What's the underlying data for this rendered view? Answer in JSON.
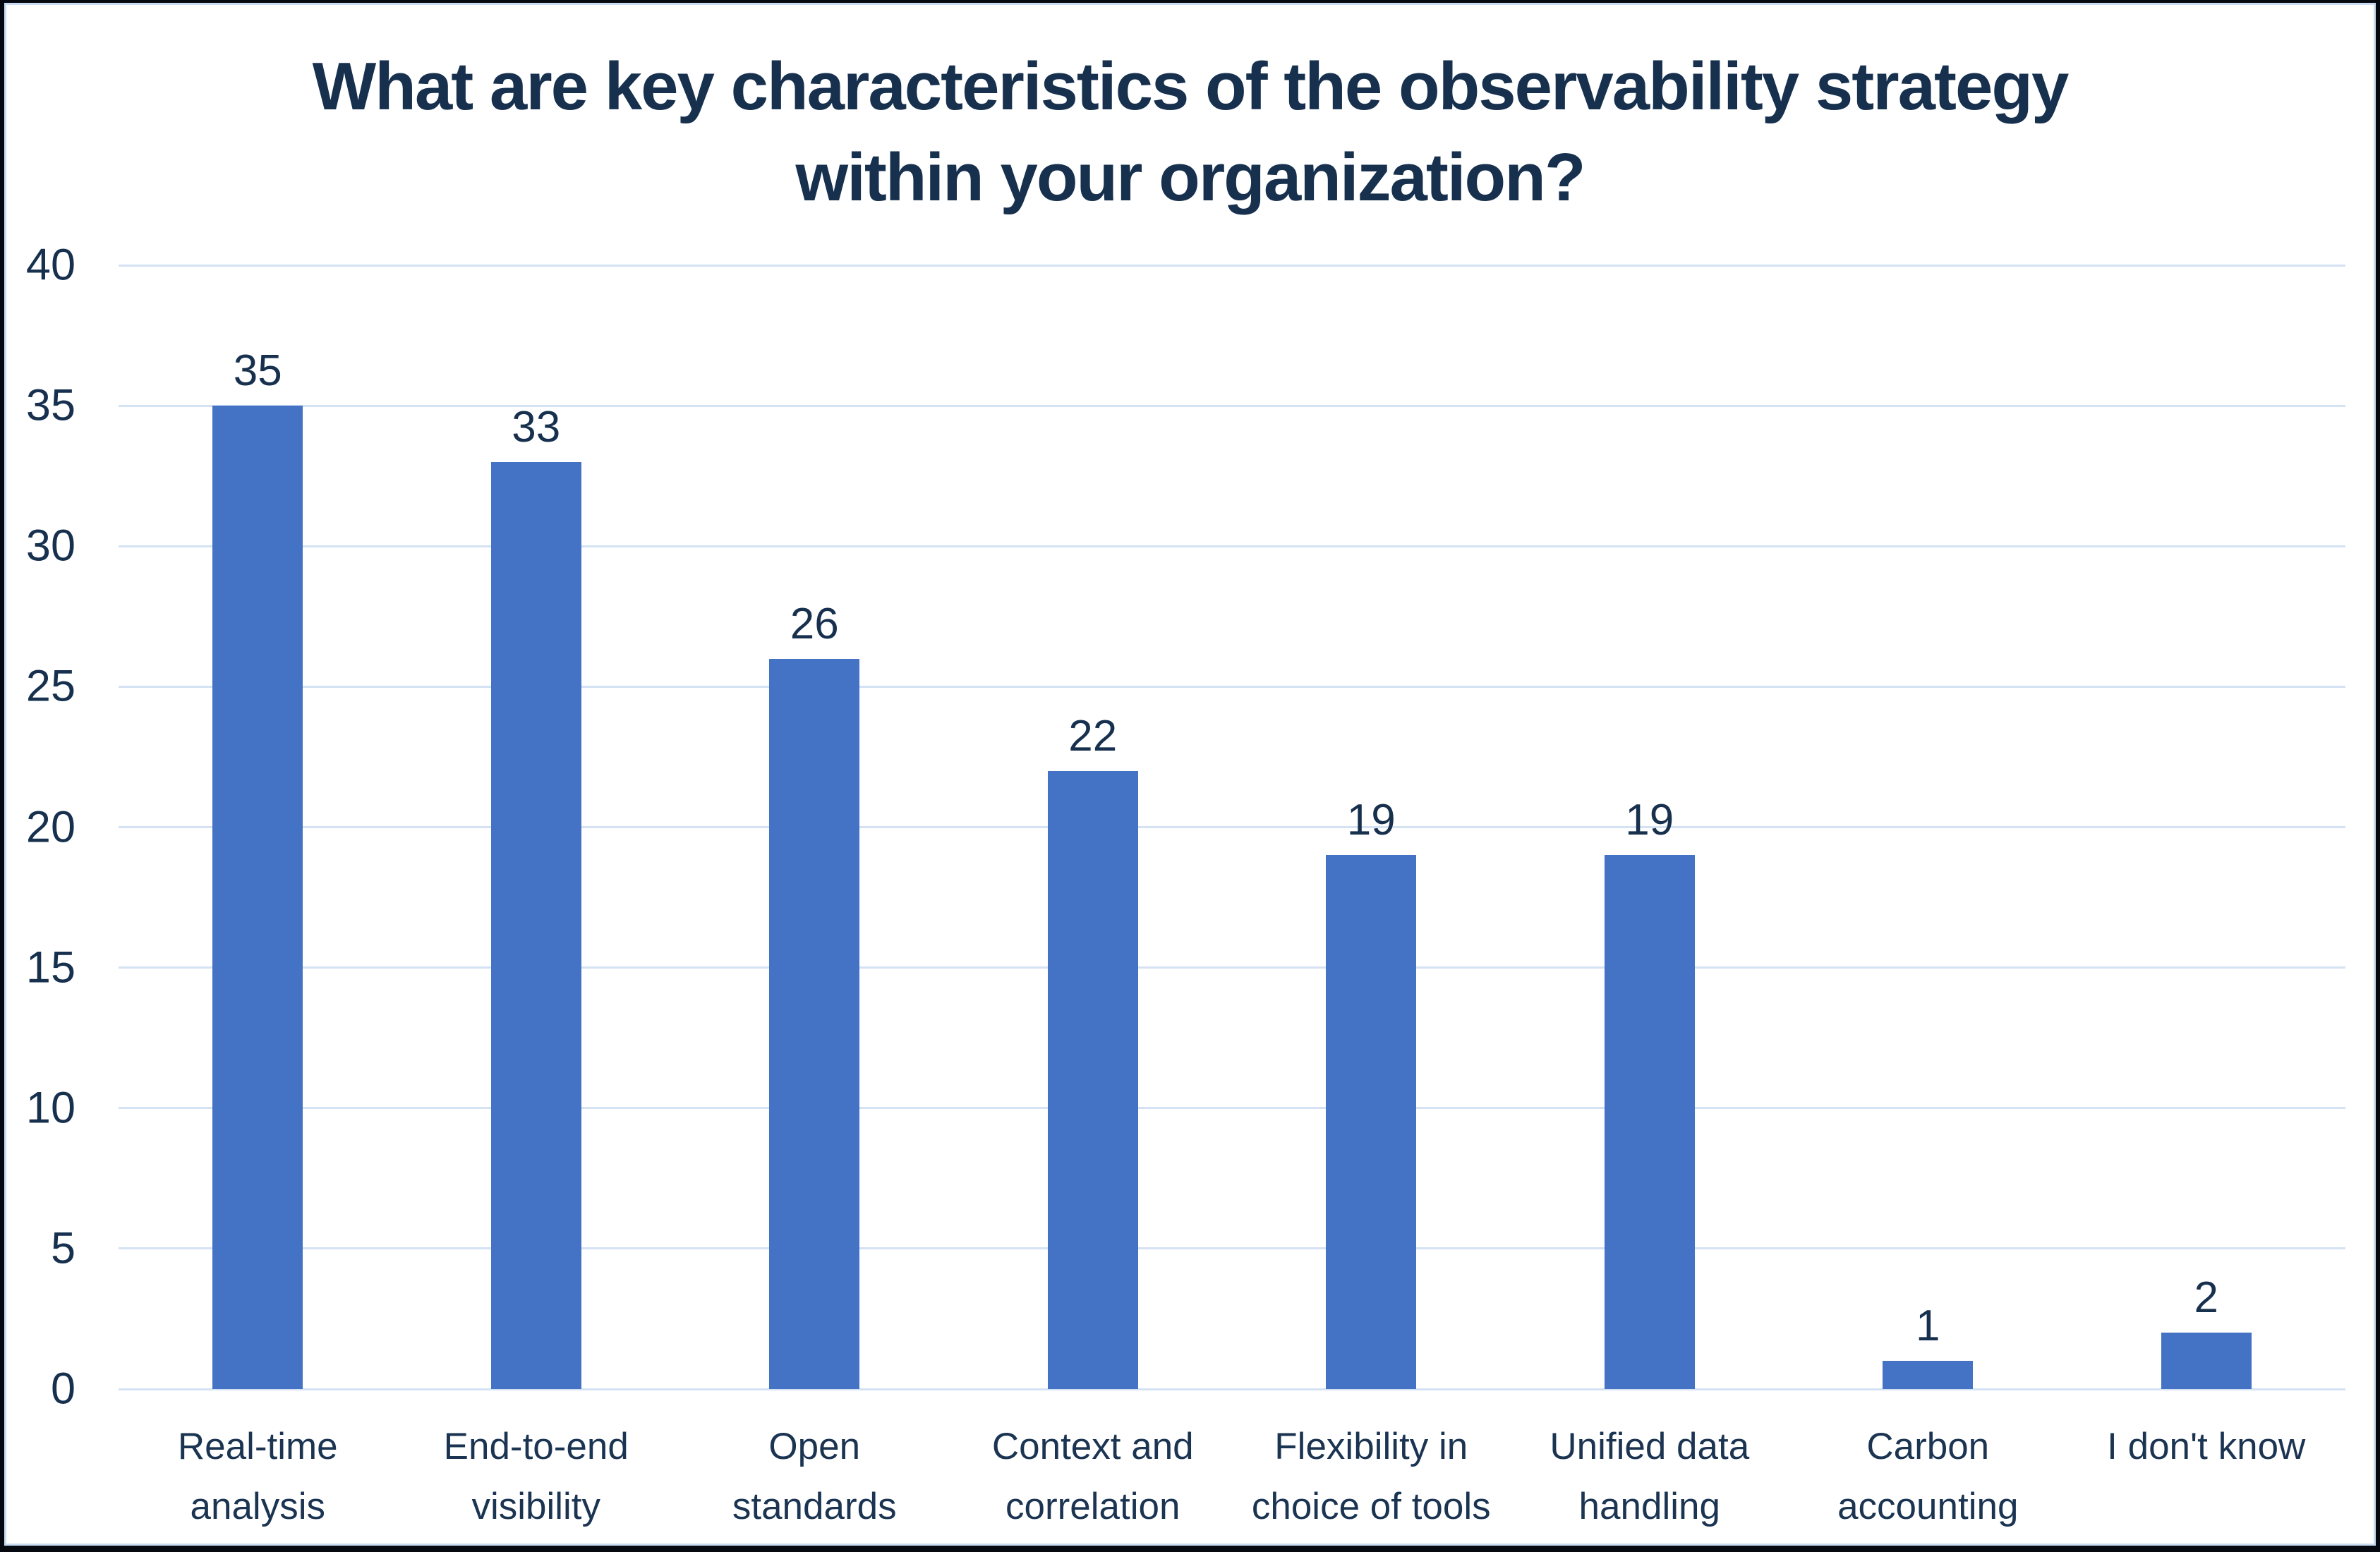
{
  "chart_data": {
    "type": "bar",
    "title": "What are key characteristics of the observability strategy within your organization?",
    "title_lines": [
      "What are key characteristics of the observability strategy",
      "within your organization?"
    ],
    "categories": [
      "Real-time analysis",
      "End-to-end visibility",
      "Open standards",
      "Context and correlation",
      "Flexibility in choice of tools",
      "Unified data handling",
      "Carbon accounting",
      "I don't know"
    ],
    "category_lines": [
      [
        "Real-time",
        "analysis"
      ],
      [
        "End-to-end",
        "visibility"
      ],
      [
        "Open",
        "standards"
      ],
      [
        "Context and",
        "correlation"
      ],
      [
        "Flexibility in",
        "choice of tools"
      ],
      [
        "Unified data",
        "handling"
      ],
      [
        "Carbon",
        "accounting"
      ],
      [
        "I don't know"
      ]
    ],
    "values": [
      35,
      33,
      26,
      22,
      19,
      19,
      1,
      2
    ],
    "data_labels": [
      "35",
      "33",
      "26",
      "22",
      "19",
      "19",
      "1",
      "2"
    ],
    "xlabel": "",
    "ylabel": "",
    "ylim": [
      0,
      40
    ],
    "yticks": [
      0,
      5,
      10,
      15,
      20,
      25,
      30,
      35,
      40
    ],
    "grid": "horizontal",
    "legend": "none",
    "colors": {
      "bar": "#4472C4",
      "text": "#17304E",
      "title_text": "#16304E",
      "gridline": "#D4E2F4",
      "plot_border": "#C9DCF2",
      "outer_border": "#060A10",
      "background": "#FFFFFF"
    }
  }
}
